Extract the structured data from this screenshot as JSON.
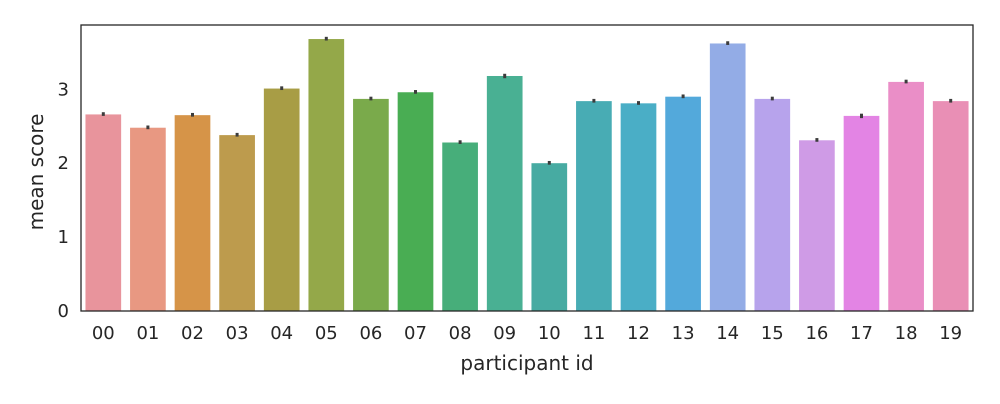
{
  "chart_data": {
    "type": "bar",
    "title": "",
    "xlabel": "participant id",
    "ylabel": "mean score",
    "categories": [
      "00",
      "01",
      "02",
      "03",
      "04",
      "05",
      "06",
      "07",
      "08",
      "09",
      "10",
      "11",
      "12",
      "13",
      "14",
      "15",
      "16",
      "17",
      "18",
      "19"
    ],
    "values": [
      2.66,
      2.48,
      2.65,
      2.38,
      3.01,
      3.68,
      2.87,
      2.96,
      2.28,
      3.18,
      2.0,
      2.84,
      2.81,
      2.9,
      3.62,
      2.87,
      2.31,
      2.64,
      3.1,
      2.84
    ],
    "error_low": [
      2.64,
      2.46,
      2.63,
      2.36,
      2.99,
      3.66,
      2.85,
      2.94,
      2.26,
      3.15,
      1.98,
      2.82,
      2.79,
      2.88,
      3.6,
      2.85,
      2.29,
      2.61,
      3.08,
      2.82
    ],
    "error_high": [
      2.69,
      2.51,
      2.68,
      2.41,
      3.04,
      3.71,
      2.9,
      2.99,
      2.31,
      3.21,
      2.03,
      2.87,
      2.84,
      2.93,
      3.65,
      2.9,
      2.34,
      2.67,
      3.13,
      2.87
    ],
    "colors": [
      "#e8949c",
      "#e89882",
      "#d69448",
      "#bd9b4d",
      "#a89d45",
      "#94a849",
      "#7aaa4b",
      "#49ad53",
      "#47ae7a",
      "#49b093",
      "#47aba2",
      "#48acb4",
      "#4aaec6",
      "#53a9db",
      "#93ace6",
      "#b7a3ec",
      "#cf9be6",
      "#e384e4",
      "#ea8ec7",
      "#e98fb5"
    ],
    "yticks": [
      0,
      1,
      2,
      3
    ],
    "ytick_labels": [
      "0",
      "1",
      "2",
      "3"
    ],
    "ylim": [
      0,
      3.87
    ],
    "grid": false,
    "legend": "none"
  }
}
